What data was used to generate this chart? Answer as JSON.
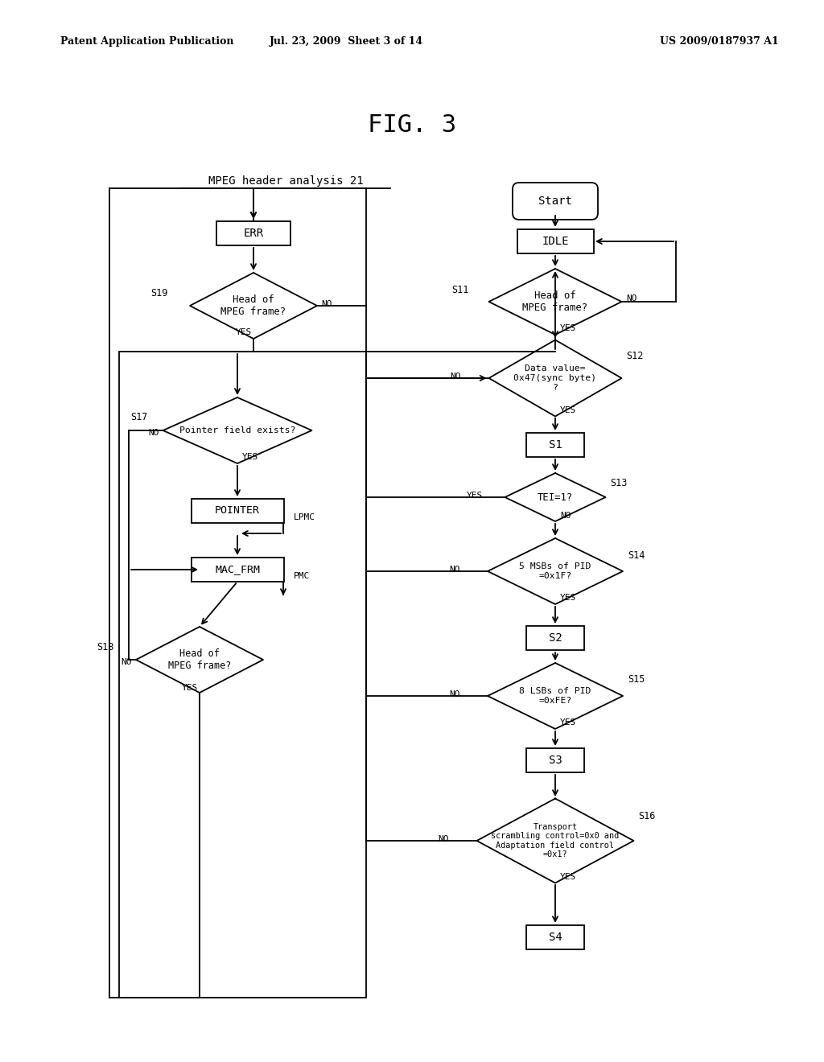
{
  "bg_color": "#ffffff",
  "header_left": "Patent Application Publication",
  "header_mid": "Jul. 23, 2009  Sheet 3 of 14",
  "header_right": "US 2009/0187937 A1",
  "fig_title": "FIG. 3",
  "label_text": "MPEG header analysis 21"
}
